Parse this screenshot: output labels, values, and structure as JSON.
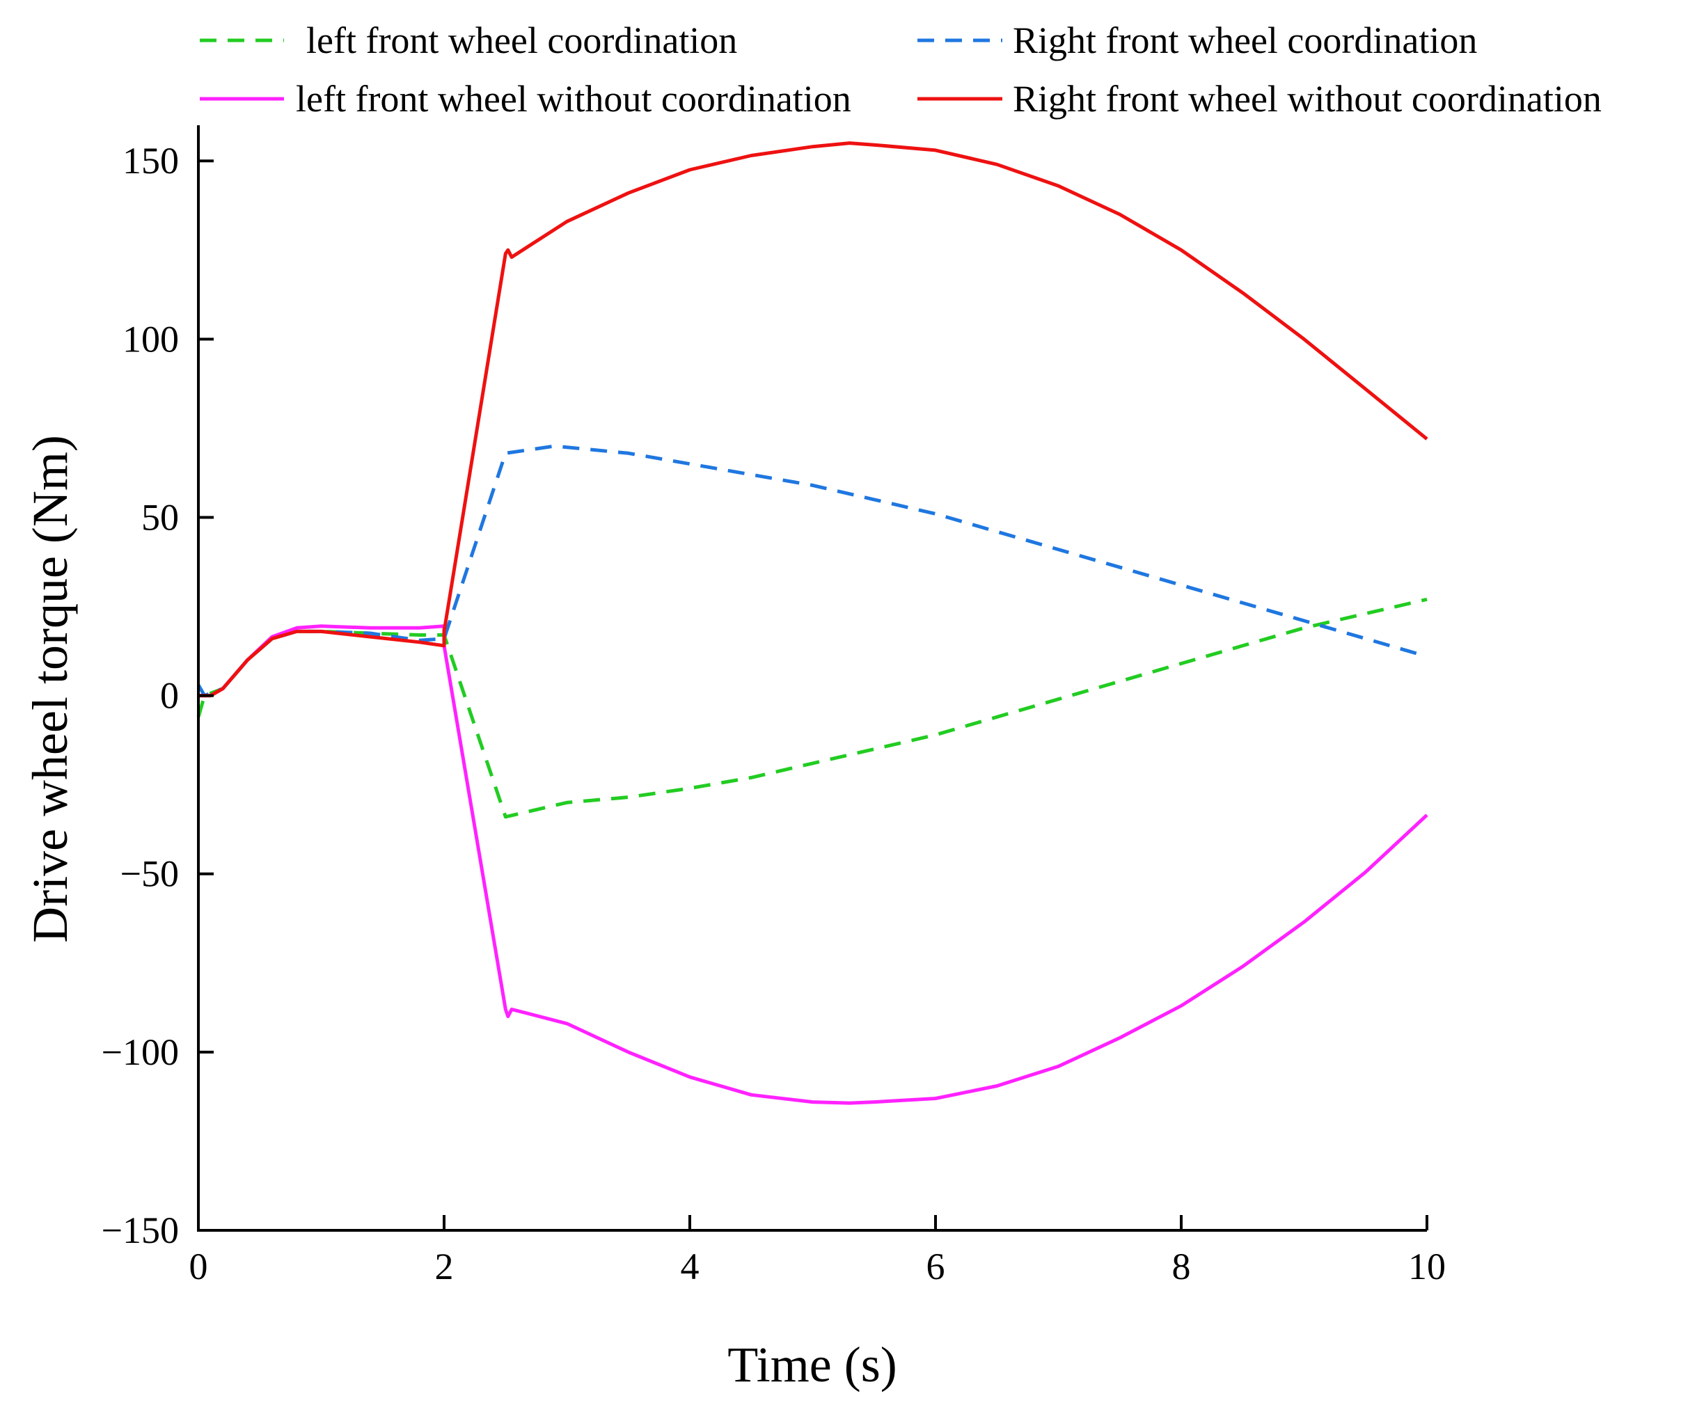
{
  "chart_data": {
    "type": "line",
    "title": "",
    "xlabel": "Time (s)",
    "ylabel": "Drive wheel torque (Nm)",
    "xlim": [
      0,
      10
    ],
    "ylim": [
      -150,
      160
    ],
    "xticks": [
      0,
      2,
      4,
      6,
      8,
      10
    ],
    "yticks": [
      -150,
      -100,
      -50,
      0,
      50,
      100,
      150
    ],
    "xtick_labels": [
      "0",
      "2",
      "4",
      "6",
      "8",
      "10"
    ],
    "ytick_labels": [
      "−150",
      "−100",
      "−50",
      "0",
      "50",
      "100",
      "150"
    ],
    "grid": false,
    "legend_position": "top",
    "series": [
      {
        "name": "left front wheel coordination",
        "color": "#22cc22",
        "dash": "dashed",
        "points": [
          [
            0,
            -6
          ],
          [
            0.05,
            0
          ],
          [
            0.2,
            2
          ],
          [
            0.4,
            10
          ],
          [
            0.6,
            16
          ],
          [
            0.8,
            18
          ],
          [
            1.0,
            18
          ],
          [
            1.4,
            17.5
          ],
          [
            1.8,
            17
          ],
          [
            2.0,
            17
          ],
          [
            2.5,
            -34
          ],
          [
            3.0,
            -30
          ],
          [
            3.5,
            -28.5
          ],
          [
            4.0,
            -26
          ],
          [
            4.5,
            -23
          ],
          [
            5.0,
            -19
          ],
          [
            5.5,
            -15
          ],
          [
            6.0,
            -11
          ],
          [
            6.5,
            -6
          ],
          [
            7.0,
            -1
          ],
          [
            7.5,
            4
          ],
          [
            8.0,
            9
          ],
          [
            8.5,
            14
          ],
          [
            9.0,
            19
          ],
          [
            9.5,
            23
          ],
          [
            10.0,
            27
          ]
        ]
      },
      {
        "name": "Right front wheel coordination",
        "color": "#1f77e0",
        "dash": "dashed",
        "points": [
          [
            0,
            3
          ],
          [
            0.05,
            0
          ],
          [
            0.2,
            2
          ],
          [
            0.4,
            10
          ],
          [
            0.6,
            16
          ],
          [
            0.8,
            18
          ],
          [
            1.0,
            18
          ],
          [
            1.4,
            17.5
          ],
          [
            1.8,
            15.5
          ],
          [
            2.0,
            16
          ],
          [
            2.5,
            68
          ],
          [
            2.9,
            70
          ],
          [
            3.5,
            68
          ],
          [
            4.0,
            65
          ],
          [
            4.5,
            62
          ],
          [
            5.0,
            59
          ],
          [
            5.5,
            55
          ],
          [
            6.0,
            51
          ],
          [
            6.5,
            46
          ],
          [
            7.0,
            41
          ],
          [
            7.5,
            36
          ],
          [
            8.0,
            31
          ],
          [
            8.5,
            26
          ],
          [
            9.0,
            21
          ],
          [
            9.5,
            16
          ],
          [
            10.0,
            11
          ]
        ]
      },
      {
        "name": "left front wheel without coordination",
        "color": "#ff22ff",
        "dash": "solid",
        "points": [
          [
            0,
            0
          ],
          [
            0.1,
            0
          ],
          [
            0.2,
            2
          ],
          [
            0.4,
            10
          ],
          [
            0.6,
            16.5
          ],
          [
            0.8,
            19
          ],
          [
            1.0,
            19.5
          ],
          [
            1.4,
            19
          ],
          [
            1.8,
            19
          ],
          [
            2.0,
            19.5
          ],
          [
            2.0,
            14
          ],
          [
            2.5,
            -88
          ],
          [
            2.52,
            -90
          ],
          [
            2.55,
            -88
          ],
          [
            3.0,
            -92
          ],
          [
            3.5,
            -100
          ],
          [
            4.0,
            -107
          ],
          [
            4.5,
            -112
          ],
          [
            5.0,
            -114
          ],
          [
            5.3,
            -114.3
          ],
          [
            5.5,
            -114
          ],
          [
            6.0,
            -113
          ],
          [
            6.5,
            -109.5
          ],
          [
            7.0,
            -104
          ],
          [
            7.5,
            -96
          ],
          [
            8.0,
            -87
          ],
          [
            8.5,
            -76
          ],
          [
            9.0,
            -63.5
          ],
          [
            9.5,
            -49.5
          ],
          [
            10.0,
            -33.5
          ]
        ]
      },
      {
        "name": "Right front wheel without coordination",
        "color": "#ee1111",
        "dash": "solid",
        "points": [
          [
            0,
            0
          ],
          [
            0.1,
            0
          ],
          [
            0.2,
            2
          ],
          [
            0.4,
            10
          ],
          [
            0.6,
            16
          ],
          [
            0.8,
            18
          ],
          [
            1.0,
            18
          ],
          [
            1.4,
            16.5
          ],
          [
            1.8,
            15
          ],
          [
            2.0,
            14
          ],
          [
            2.0,
            18
          ],
          [
            2.5,
            124
          ],
          [
            2.52,
            125
          ],
          [
            2.55,
            123
          ],
          [
            3.0,
            133
          ],
          [
            3.5,
            141
          ],
          [
            4.0,
            147.5
          ],
          [
            4.5,
            151.5
          ],
          [
            5.0,
            154
          ],
          [
            5.3,
            155
          ],
          [
            5.5,
            154.5
          ],
          [
            6.0,
            153
          ],
          [
            6.5,
            149
          ],
          [
            7.0,
            143
          ],
          [
            7.5,
            135
          ],
          [
            8.0,
            125
          ],
          [
            8.5,
            113
          ],
          [
            9.0,
            100
          ],
          [
            9.5,
            86
          ],
          [
            10.0,
            72
          ]
        ]
      }
    ]
  }
}
